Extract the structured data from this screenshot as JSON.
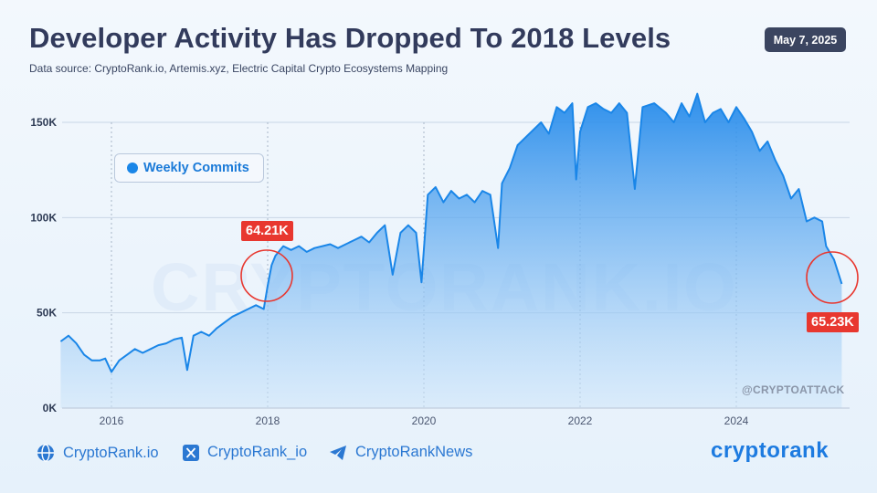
{
  "header": {
    "title": "Developer Activity Has Dropped To 2018 Levels",
    "subtitle": "Data source: CryptoRank.io, Artemis.xyz, Electric Capital Crypto Ecosystems Mapping",
    "date": "May 7, 2025"
  },
  "watermark": "CRYPTORANK.IO",
  "signature": "@CRYPTOATTACK",
  "callouts": {
    "left": "64.21K",
    "right": "65.23K"
  },
  "colors": {
    "line": "#1a86e8",
    "accent": "#e8372f",
    "grid": "#c9d6e6"
  },
  "footer": {
    "website": {
      "icon": "globe-icon",
      "label": "CryptoRank.io"
    },
    "x": {
      "icon": "x-logo-icon",
      "label": "CryptoRank_io"
    },
    "telegram": {
      "icon": "telegram-icon",
      "label": "CryptoRankNews"
    },
    "brand": "cryptorank"
  },
  "chart_data": {
    "type": "area",
    "title": "Developer Activity Has Dropped To 2018 Levels",
    "ylabel": "",
    "xlabel": "",
    "ylim": [
      0,
      160000
    ],
    "yticks": [
      0,
      50000,
      100000,
      150000
    ],
    "ytick_labels": [
      "0K",
      "50K",
      "100K",
      "150K"
    ],
    "xticks": [
      2016,
      2018,
      2020,
      2022,
      2024
    ],
    "xtick_labels": [
      "2016",
      "2018",
      "2020",
      "2022",
      "2024"
    ],
    "grid": true,
    "legend": "top-left",
    "series": [
      {
        "name": "Weekly Commits",
        "x": [
          2015.35,
          2015.45,
          2015.55,
          2015.65,
          2015.75,
          2015.85,
          2015.92,
          2016.0,
          2016.1,
          2016.2,
          2016.3,
          2016.4,
          2016.5,
          2016.6,
          2016.7,
          2016.8,
          2016.9,
          2016.97,
          2017.05,
          2017.15,
          2017.25,
          2017.35,
          2017.45,
          2017.55,
          2017.65,
          2017.75,
          2017.85,
          2017.95,
          2018.0,
          2018.05,
          2018.1,
          2018.2,
          2018.3,
          2018.4,
          2018.5,
          2018.6,
          2018.7,
          2018.8,
          2018.9,
          2019.0,
          2019.1,
          2019.2,
          2019.3,
          2019.4,
          2019.5,
          2019.6,
          2019.7,
          2019.8,
          2019.9,
          2019.97,
          2020.05,
          2020.15,
          2020.25,
          2020.35,
          2020.45,
          2020.55,
          2020.65,
          2020.75,
          2020.85,
          2020.95,
          2021.0,
          2021.1,
          2021.2,
          2021.3,
          2021.4,
          2021.5,
          2021.6,
          2021.7,
          2021.8,
          2021.9,
          2021.95,
          2022.0,
          2022.1,
          2022.2,
          2022.3,
          2022.4,
          2022.5,
          2022.6,
          2022.7,
          2022.8,
          2022.95,
          2023.1,
          2023.2,
          2023.3,
          2023.4,
          2023.5,
          2023.6,
          2023.7,
          2023.8,
          2023.9,
          2024.0,
          2024.1,
          2024.2,
          2024.3,
          2024.4,
          2024.5,
          2024.6,
          2024.7,
          2024.8,
          2024.9,
          2025.0,
          2025.1,
          2025.15,
          2025.25,
          2025.35
        ],
        "values": [
          35000,
          38000,
          34000,
          28000,
          25000,
          25000,
          26000,
          19000,
          25000,
          28000,
          31000,
          29000,
          31000,
          33000,
          34000,
          36000,
          37000,
          20000,
          38000,
          40000,
          38000,
          42000,
          45000,
          48000,
          50000,
          52000,
          54000,
          52000,
          64210,
          75000,
          80000,
          85000,
          83000,
          85000,
          82000,
          84000,
          85000,
          86000,
          84000,
          86000,
          88000,
          90000,
          87000,
          92000,
          96000,
          70000,
          92000,
          96000,
          92000,
          66000,
          112000,
          116000,
          108000,
          114000,
          110000,
          112000,
          108000,
          114000,
          112000,
          84000,
          118000,
          126000,
          138000,
          142000,
          146000,
          150000,
          144000,
          158000,
          155000,
          160000,
          120000,
          145000,
          158000,
          160000,
          157000,
          155000,
          160000,
          155000,
          115000,
          158000,
          160000,
          155000,
          150000,
          160000,
          153000,
          165000,
          150000,
          155000,
          157000,
          150000,
          158000,
          152000,
          145000,
          135000,
          140000,
          130000,
          122000,
          110000,
          115000,
          98000,
          100000,
          98000,
          85000,
          78000,
          65230
        ]
      }
    ]
  }
}
